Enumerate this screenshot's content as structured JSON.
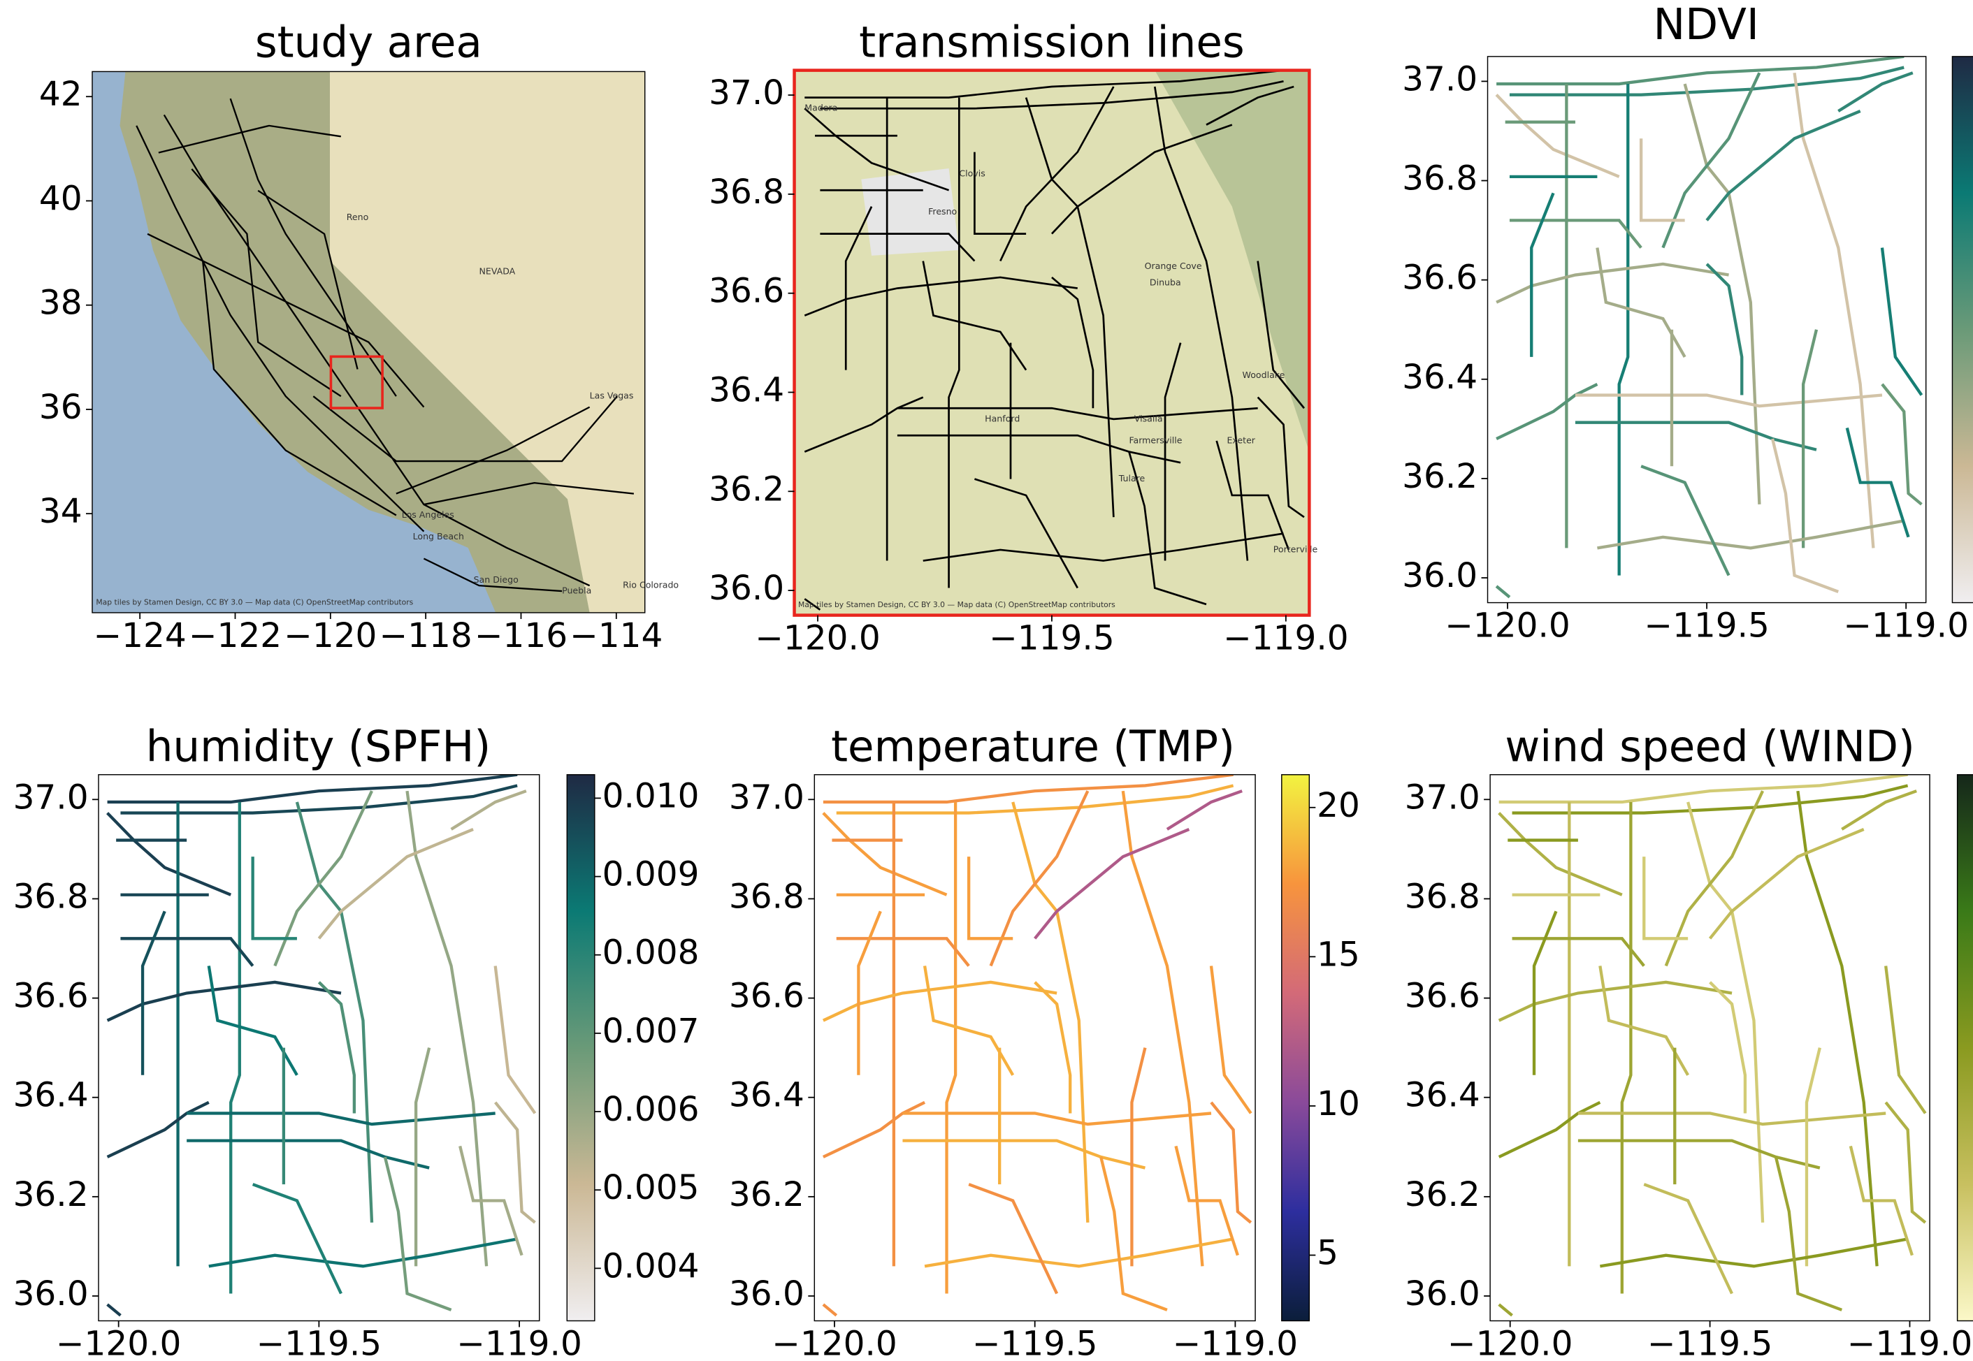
{
  "chart_data": [
    {
      "type": "map",
      "title": "study area",
      "basemap": true,
      "xlim": [
        -125,
        -113.4
      ],
      "ylim": [
        32.1,
        42.48
      ],
      "xticks": [
        {
          "value": -124,
          "label": "−124"
        },
        {
          "value": -122,
          "label": "−122"
        },
        {
          "value": -120,
          "label": "−120"
        },
        {
          "value": -118,
          "label": "−118"
        },
        {
          "value": -116,
          "label": "−116"
        },
        {
          "value": -114,
          "label": "−114"
        }
      ],
      "yticks": [
        34,
        36,
        38,
        40,
        42
      ],
      "line_color": "#000000",
      "place_labels": [
        "NEVADA",
        "Reno",
        "Las Vegas",
        "Los Angeles",
        "Long Beach",
        "San Diego",
        "Puebla",
        "Rio Colorado"
      ],
      "attribution": "Map tiles by Stamen Design, CC BY 3.0 — Map data (C) OpenStreetMap contributors"
    },
    {
      "type": "map",
      "title": "transmission lines",
      "basemap": true,
      "frame_color": "#e8251d",
      "xlim": [
        -120.05,
        -118.95
      ],
      "ylim": [
        35.95,
        37.05
      ],
      "xticks": [
        {
          "value": -120,
          "label": "−120.0"
        },
        {
          "value": -119.5,
          "label": "−119.5"
        },
        {
          "value": -119,
          "label": "−119.0"
        }
      ],
      "yticks": [
        {
          "value": 36,
          "label": "36.0"
        },
        36.2,
        36.4,
        36.6,
        36.8,
        {
          "value": 37,
          "label": "37.0"
        }
      ],
      "line_color": "#000000",
      "place_labels": [
        "Madera",
        "Clovis",
        "Fresno",
        "Orange Cove",
        "Dinuba",
        "Woodlake",
        "Hanford",
        "Visalia",
        "Farmersville",
        "Exeter",
        "Tulare",
        "Porterville"
      ],
      "attribution": "Map tiles by Stamen Design, CC BY 3.0 — Map data (C) OpenStreetMap contributors"
    },
    {
      "type": "map",
      "title": "NDVI",
      "xlim": [
        -120.05,
        -118.95
      ],
      "ylim": [
        35.95,
        37.05
      ],
      "xticks": [
        {
          "value": -120,
          "label": "−120.0"
        },
        {
          "value": -119.5,
          "label": "−119.5"
        },
        {
          "value": -119,
          "label": "−119.0"
        }
      ],
      "yticks": [
        {
          "value": 36,
          "label": "36.0"
        },
        36.2,
        36.4,
        36.6,
        36.8,
        {
          "value": 37,
          "label": "37.0"
        }
      ],
      "colorbar": {
        "colors": [
          "#f0eef0",
          "#cbb895",
          "#6a9a78",
          "#0b7a74",
          "#1f2a44"
        ]
      }
    },
    {
      "type": "map",
      "title": "humidity (SPFH)",
      "xlim": [
        -120.05,
        -118.95
      ],
      "ylim": [
        35.95,
        37.05
      ],
      "xticks": [
        {
          "value": -120,
          "label": "−120.0"
        },
        {
          "value": -119.5,
          "label": "−119.5"
        },
        {
          "value": -119,
          "label": "−119.0"
        }
      ],
      "yticks": [
        {
          "value": 36,
          "label": "36.0"
        },
        36.2,
        36.4,
        36.6,
        36.8,
        {
          "value": 37,
          "label": "37.0"
        }
      ],
      "colorbar": {
        "colors": [
          "#f0eef0",
          "#cbb895",
          "#6a9a78",
          "#0b7a74",
          "#1f2a44"
        ],
        "lim": [
          0.00333,
          0.0103
        ],
        "ticks": [
          0.004,
          0.005,
          0.006,
          0.007,
          0.008,
          0.009,
          {
            "value": 0.01,
            "label": "0.010"
          }
        ]
      }
    },
    {
      "type": "map",
      "title": "temperature (TMP)",
      "xlim": [
        -120.05,
        -118.95
      ],
      "ylim": [
        35.95,
        37.05
      ],
      "xticks": [
        {
          "value": -120,
          "label": "−120.0"
        },
        {
          "value": -119.5,
          "label": "−119.5"
        },
        {
          "value": -119,
          "label": "−119.0"
        }
      ],
      "yticks": [
        {
          "value": 36,
          "label": "36.0"
        },
        36.2,
        36.4,
        36.6,
        36.8,
        {
          "value": 37,
          "label": "37.0"
        }
      ],
      "colorbar": {
        "colors": [
          "#0b1e3a",
          "#2d2e9e",
          "#8a4a9a",
          "#d36a78",
          "#f7943d",
          "#f2f340"
        ],
        "lim": [
          2.8,
          21.1
        ],
        "ticks": [
          5,
          10,
          15,
          20
        ]
      }
    },
    {
      "type": "map",
      "title": "wind speed (WIND)",
      "xlim": [
        -120.05,
        -118.95
      ],
      "ylim": [
        35.95,
        37.05
      ],
      "xticks": [
        {
          "value": -120,
          "label": "−120.0"
        },
        {
          "value": -119.5,
          "label": "−119.5"
        },
        {
          "value": -119,
          "label": "−119.0"
        }
      ],
      "yticks": [
        {
          "value": 36,
          "label": "36.0"
        },
        36.2,
        36.4,
        36.6,
        36.8,
        {
          "value": 37,
          "label": "37.0"
        }
      ],
      "colorbar": {
        "colors": [
          "#fbf8c8",
          "#c8c060",
          "#8a9a20",
          "#3a7a18",
          "#15271a"
        ]
      }
    }
  ]
}
